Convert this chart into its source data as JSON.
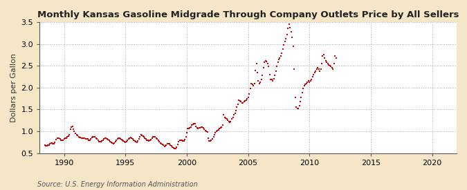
{
  "title": "Monthly Kansas Gasoline Midgrade Through Company Outlets Price by All Sellers",
  "ylabel": "Dollars per Gallon",
  "source": "Source: U.S. Energy Information Administration",
  "fig_background": "#f5e6c8",
  "plot_background": "#ffffff",
  "dot_color": "#cc0000",
  "xlim": [
    1988.0,
    2022.0
  ],
  "ylim": [
    0.5,
    3.5
  ],
  "xticks": [
    1990,
    1995,
    2000,
    2005,
    2010,
    2015,
    2020
  ],
  "yticks": [
    0.5,
    1.0,
    1.5,
    2.0,
    2.5,
    3.0,
    3.5
  ],
  "data": [
    [
      1988.42,
      0.68
    ],
    [
      1988.5,
      0.67
    ],
    [
      1988.58,
      0.67
    ],
    [
      1988.67,
      0.68
    ],
    [
      1988.75,
      0.69
    ],
    [
      1988.83,
      0.71
    ],
    [
      1988.92,
      0.74
    ],
    [
      1989.0,
      0.74
    ],
    [
      1989.08,
      0.72
    ],
    [
      1989.17,
      0.72
    ],
    [
      1989.25,
      0.75
    ],
    [
      1989.33,
      0.81
    ],
    [
      1989.42,
      0.85
    ],
    [
      1989.5,
      0.85
    ],
    [
      1989.58,
      0.84
    ],
    [
      1989.67,
      0.82
    ],
    [
      1989.75,
      0.8
    ],
    [
      1989.83,
      0.79
    ],
    [
      1989.92,
      0.8
    ],
    [
      1990.0,
      0.82
    ],
    [
      1990.08,
      0.84
    ],
    [
      1990.17,
      0.85
    ],
    [
      1990.25,
      0.87
    ],
    [
      1990.33,
      0.89
    ],
    [
      1990.42,
      0.92
    ],
    [
      1990.5,
      1.05
    ],
    [
      1990.58,
      1.1
    ],
    [
      1990.67,
      1.12
    ],
    [
      1990.75,
      1.05
    ],
    [
      1990.83,
      1.0
    ],
    [
      1990.92,
      0.96
    ],
    [
      1991.0,
      0.93
    ],
    [
      1991.08,
      0.9
    ],
    [
      1991.17,
      0.87
    ],
    [
      1991.25,
      0.86
    ],
    [
      1991.33,
      0.86
    ],
    [
      1991.42,
      0.85
    ],
    [
      1991.5,
      0.85
    ],
    [
      1991.58,
      0.84
    ],
    [
      1991.67,
      0.84
    ],
    [
      1991.75,
      0.83
    ],
    [
      1991.83,
      0.83
    ],
    [
      1991.92,
      0.82
    ],
    [
      1992.0,
      0.8
    ],
    [
      1992.08,
      0.79
    ],
    [
      1992.17,
      0.82
    ],
    [
      1992.25,
      0.86
    ],
    [
      1992.33,
      0.88
    ],
    [
      1992.42,
      0.88
    ],
    [
      1992.5,
      0.87
    ],
    [
      1992.58,
      0.84
    ],
    [
      1992.67,
      0.82
    ],
    [
      1992.75,
      0.79
    ],
    [
      1992.83,
      0.77
    ],
    [
      1992.92,
      0.76
    ],
    [
      1993.0,
      0.76
    ],
    [
      1993.08,
      0.78
    ],
    [
      1993.17,
      0.8
    ],
    [
      1993.25,
      0.83
    ],
    [
      1993.33,
      0.84
    ],
    [
      1993.42,
      0.84
    ],
    [
      1993.5,
      0.83
    ],
    [
      1993.58,
      0.81
    ],
    [
      1993.67,
      0.79
    ],
    [
      1993.75,
      0.77
    ],
    [
      1993.83,
      0.75
    ],
    [
      1993.92,
      0.73
    ],
    [
      1994.0,
      0.72
    ],
    [
      1994.08,
      0.74
    ],
    [
      1994.17,
      0.77
    ],
    [
      1994.25,
      0.8
    ],
    [
      1994.33,
      0.83
    ],
    [
      1994.42,
      0.84
    ],
    [
      1994.5,
      0.84
    ],
    [
      1994.58,
      0.83
    ],
    [
      1994.67,
      0.81
    ],
    [
      1994.75,
      0.8
    ],
    [
      1994.83,
      0.78
    ],
    [
      1994.92,
      0.76
    ],
    [
      1995.0,
      0.75
    ],
    [
      1995.08,
      0.77
    ],
    [
      1995.17,
      0.8
    ],
    [
      1995.25,
      0.83
    ],
    [
      1995.33,
      0.85
    ],
    [
      1995.42,
      0.86
    ],
    [
      1995.5,
      0.84
    ],
    [
      1995.58,
      0.82
    ],
    [
      1995.67,
      0.8
    ],
    [
      1995.75,
      0.78
    ],
    [
      1995.83,
      0.76
    ],
    [
      1995.92,
      0.75
    ],
    [
      1996.0,
      0.78
    ],
    [
      1996.08,
      0.83
    ],
    [
      1996.17,
      0.88
    ],
    [
      1996.25,
      0.92
    ],
    [
      1996.33,
      0.91
    ],
    [
      1996.42,
      0.89
    ],
    [
      1996.5,
      0.87
    ],
    [
      1996.58,
      0.84
    ],
    [
      1996.67,
      0.82
    ],
    [
      1996.75,
      0.8
    ],
    [
      1996.83,
      0.79
    ],
    [
      1996.92,
      0.78
    ],
    [
      1997.0,
      0.79
    ],
    [
      1997.08,
      0.81
    ],
    [
      1997.17,
      0.84
    ],
    [
      1997.25,
      0.87
    ],
    [
      1997.33,
      0.88
    ],
    [
      1997.42,
      0.87
    ],
    [
      1997.5,
      0.85
    ],
    [
      1997.58,
      0.82
    ],
    [
      1997.67,
      0.79
    ],
    [
      1997.75,
      0.76
    ],
    [
      1997.83,
      0.74
    ],
    [
      1997.92,
      0.72
    ],
    [
      1998.0,
      0.7
    ],
    [
      1998.08,
      0.68
    ],
    [
      1998.17,
      0.66
    ],
    [
      1998.25,
      0.67
    ],
    [
      1998.33,
      0.69
    ],
    [
      1998.42,
      0.71
    ],
    [
      1998.5,
      0.72
    ],
    [
      1998.58,
      0.71
    ],
    [
      1998.67,
      0.69
    ],
    [
      1998.75,
      0.67
    ],
    [
      1998.83,
      0.64
    ],
    [
      1998.92,
      0.62
    ],
    [
      1999.0,
      0.61
    ],
    [
      1999.08,
      0.6
    ],
    [
      1999.17,
      0.63
    ],
    [
      1999.25,
      0.7
    ],
    [
      1999.33,
      0.77
    ],
    [
      1999.42,
      0.79
    ],
    [
      1999.5,
      0.8
    ],
    [
      1999.58,
      0.8
    ],
    [
      1999.67,
      0.78
    ],
    [
      1999.75,
      0.78
    ],
    [
      1999.83,
      0.81
    ],
    [
      1999.92,
      0.87
    ],
    [
      2000.0,
      0.97
    ],
    [
      2000.08,
      1.06
    ],
    [
      2000.17,
      1.07
    ],
    [
      2000.25,
      1.08
    ],
    [
      2000.33,
      1.1
    ],
    [
      2000.42,
      1.14
    ],
    [
      2000.5,
      1.16
    ],
    [
      2000.58,
      1.17
    ],
    [
      2000.67,
      1.18
    ],
    [
      2000.75,
      1.12
    ],
    [
      2000.83,
      1.08
    ],
    [
      2000.92,
      1.06
    ],
    [
      2001.0,
      1.08
    ],
    [
      2001.08,
      1.08
    ],
    [
      2001.17,
      1.09
    ],
    [
      2001.25,
      1.1
    ],
    [
      2001.33,
      1.08
    ],
    [
      2001.42,
      1.05
    ],
    [
      2001.5,
      1.02
    ],
    [
      2001.58,
      1.0
    ],
    [
      2001.67,
      0.98
    ],
    [
      2001.75,
      0.85
    ],
    [
      2001.83,
      0.78
    ],
    [
      2001.92,
      0.78
    ],
    [
      2002.0,
      0.8
    ],
    [
      2002.08,
      0.82
    ],
    [
      2002.17,
      0.87
    ],
    [
      2002.25,
      0.92
    ],
    [
      2002.33,
      0.97
    ],
    [
      2002.42,
      1.0
    ],
    [
      2002.5,
      1.02
    ],
    [
      2002.58,
      1.04
    ],
    [
      2002.67,
      1.06
    ],
    [
      2002.75,
      1.08
    ],
    [
      2002.83,
      1.1
    ],
    [
      2002.92,
      1.15
    ],
    [
      2003.0,
      1.38
    ],
    [
      2003.08,
      1.32
    ],
    [
      2003.17,
      1.3
    ],
    [
      2003.25,
      1.28
    ],
    [
      2003.33,
      1.25
    ],
    [
      2003.42,
      1.22
    ],
    [
      2003.5,
      1.2
    ],
    [
      2003.58,
      1.22
    ],
    [
      2003.67,
      1.28
    ],
    [
      2003.75,
      1.32
    ],
    [
      2003.83,
      1.38
    ],
    [
      2003.92,
      1.42
    ],
    [
      2004.0,
      1.48
    ],
    [
      2004.08,
      1.55
    ],
    [
      2004.17,
      1.62
    ],
    [
      2004.25,
      1.72
    ],
    [
      2004.33,
      1.7
    ],
    [
      2004.42,
      1.68
    ],
    [
      2004.5,
      1.65
    ],
    [
      2004.58,
      1.65
    ],
    [
      2004.67,
      1.68
    ],
    [
      2004.75,
      1.7
    ],
    [
      2004.83,
      1.72
    ],
    [
      2004.92,
      1.75
    ],
    [
      2005.0,
      1.78
    ],
    [
      2005.08,
      1.85
    ],
    [
      2005.17,
      1.98
    ],
    [
      2005.25,
      2.1
    ],
    [
      2005.33,
      2.08
    ],
    [
      2005.42,
      2.05
    ],
    [
      2005.5,
      2.1
    ],
    [
      2005.58,
      2.4
    ],
    [
      2005.67,
      2.55
    ],
    [
      2005.75,
      2.35
    ],
    [
      2005.83,
      2.15
    ],
    [
      2005.92,
      2.1
    ],
    [
      2006.0,
      2.12
    ],
    [
      2006.08,
      2.18
    ],
    [
      2006.17,
      2.28
    ],
    [
      2006.25,
      2.45
    ],
    [
      2006.33,
      2.58
    ],
    [
      2006.42,
      2.62
    ],
    [
      2006.5,
      2.6
    ],
    [
      2006.58,
      2.55
    ],
    [
      2006.67,
      2.48
    ],
    [
      2006.75,
      2.3
    ],
    [
      2006.83,
      2.18
    ],
    [
      2006.92,
      2.18
    ],
    [
      2007.0,
      2.15
    ],
    [
      2007.08,
      2.2
    ],
    [
      2007.17,
      2.28
    ],
    [
      2007.25,
      2.38
    ],
    [
      2007.33,
      2.48
    ],
    [
      2007.42,
      2.58
    ],
    [
      2007.5,
      2.65
    ],
    [
      2007.58,
      2.68
    ],
    [
      2007.67,
      2.72
    ],
    [
      2007.75,
      2.78
    ],
    [
      2007.83,
      2.88
    ],
    [
      2007.92,
      2.98
    ],
    [
      2008.0,
      3.05
    ],
    [
      2008.08,
      3.12
    ],
    [
      2008.17,
      3.22
    ],
    [
      2008.25,
      3.35
    ],
    [
      2008.33,
      3.45
    ],
    [
      2008.42,
      3.38
    ],
    [
      2008.5,
      3.28
    ],
    [
      2008.58,
      3.15
    ],
    [
      2008.67,
      2.95
    ],
    [
      2008.75,
      2.42
    ],
    [
      2008.83,
      1.78
    ],
    [
      2008.92,
      1.55
    ],
    [
      2009.0,
      1.52
    ],
    [
      2009.08,
      1.52
    ],
    [
      2009.17,
      1.58
    ],
    [
      2009.25,
      1.68
    ],
    [
      2009.33,
      1.78
    ],
    [
      2009.42,
      1.88
    ],
    [
      2009.5,
      1.98
    ],
    [
      2009.58,
      2.05
    ],
    [
      2009.67,
      2.08
    ],
    [
      2009.75,
      2.1
    ],
    [
      2009.83,
      2.12
    ],
    [
      2009.92,
      2.15
    ],
    [
      2010.0,
      2.12
    ],
    [
      2010.08,
      2.15
    ],
    [
      2010.17,
      2.18
    ],
    [
      2010.25,
      2.25
    ],
    [
      2010.33,
      2.3
    ],
    [
      2010.42,
      2.35
    ],
    [
      2010.5,
      2.38
    ],
    [
      2010.58,
      2.42
    ],
    [
      2010.67,
      2.45
    ],
    [
      2010.75,
      2.42
    ],
    [
      2010.83,
      2.38
    ],
    [
      2010.92,
      2.42
    ],
    [
      2011.0,
      2.55
    ],
    [
      2011.08,
      2.72
    ],
    [
      2011.17,
      2.75
    ],
    [
      2011.25,
      2.68
    ],
    [
      2011.33,
      2.62
    ],
    [
      2011.42,
      2.58
    ],
    [
      2011.5,
      2.55
    ],
    [
      2011.58,
      2.52
    ],
    [
      2011.67,
      2.5
    ],
    [
      2011.75,
      2.48
    ],
    [
      2011.83,
      2.45
    ],
    [
      2011.92,
      2.42
    ],
    [
      2012.0,
      2.55
    ],
    [
      2012.08,
      2.72
    ],
    [
      2012.17,
      2.68
    ]
  ]
}
